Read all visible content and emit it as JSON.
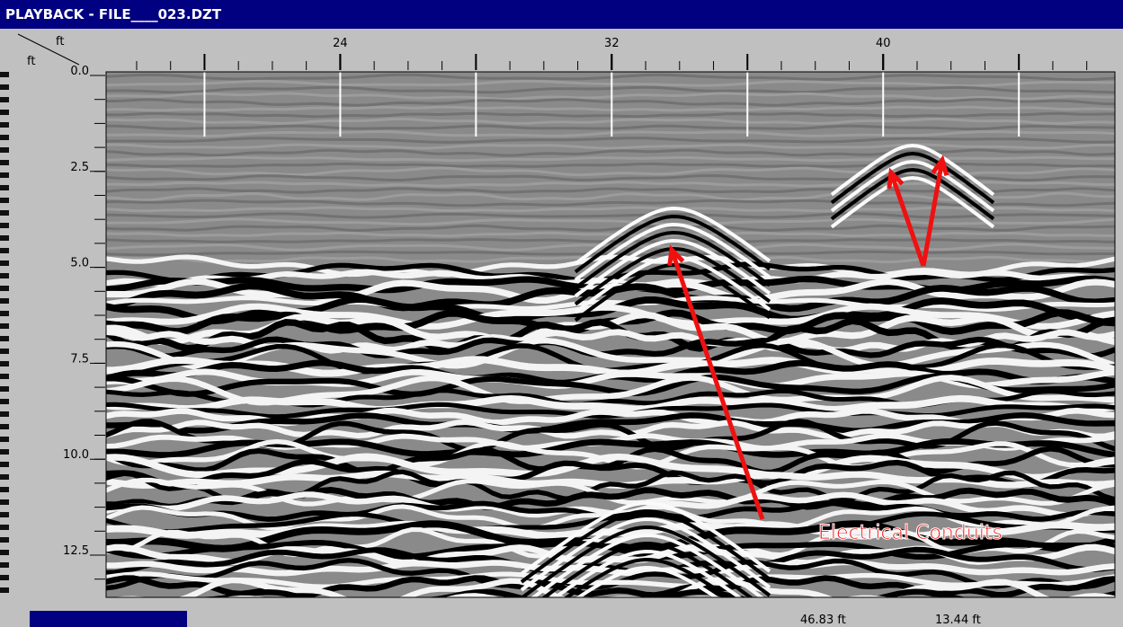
{
  "window": {
    "title": "PLAYBACK - FILE____023.DZT"
  },
  "radargram": {
    "x_unit": "ft",
    "y_unit": "ft",
    "xlim": [
      17.1,
      46.83
    ],
    "xticks": [
      24,
      32,
      40
    ],
    "ylim": [
      0,
      13.6
    ],
    "yticks": [
      {
        "value": 0,
        "label": "0.0"
      },
      {
        "value": 2.5,
        "label": "2.5"
      },
      {
        "value": 5,
        "label": "5.0"
      },
      {
        "value": 7.5,
        "label": "7.5"
      },
      {
        "value": 10,
        "label": "10.0"
      },
      {
        "value": 12.5,
        "label": "12.5"
      }
    ],
    "annotation": "Electrical Conduits"
  },
  "status": {
    "position": "46.83 ft",
    "depth": "13.44 ft"
  }
}
